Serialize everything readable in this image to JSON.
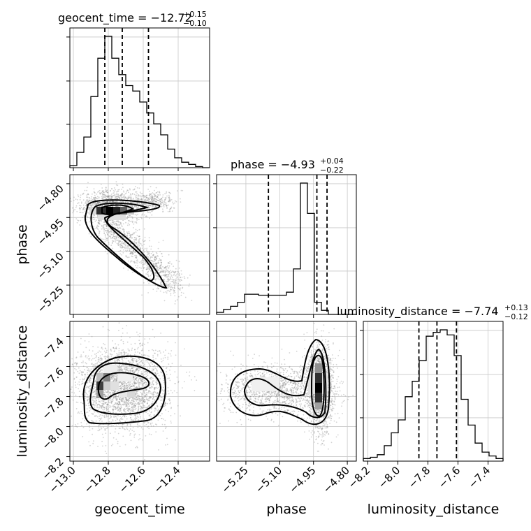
{
  "chart_data": {
    "type": "corner",
    "parameters": [
      "geocent_time",
      "phase",
      "luminosity_distance"
    ],
    "axis_labels": {
      "x": [
        "geocent_time",
        "phase",
        "luminosity_distance"
      ],
      "y": [
        "phase",
        "luminosity_distance"
      ]
    },
    "titles": [
      {
        "text": "geocent_time = −12.72",
        "upper": "+0.15",
        "lower": "−0.10"
      },
      {
        "text": "phase = −4.93",
        "upper": "+0.04",
        "lower": "−0.22"
      },
      {
        "text": "luminosity_distance = −7.74",
        "upper": "+0.13",
        "lower": "−0.12"
      }
    ],
    "ranges": {
      "geocent_time": [
        -13.02,
        -12.22
      ],
      "phase": [
        -5.38,
        -4.76
      ],
      "luminosity_distance": [
        -8.23,
        -7.3
      ]
    },
    "ticks": {
      "geocent_time": {
        "values": [
          -13.0,
          -12.8,
          -12.6,
          -12.4
        ],
        "labels": [
          "−13.0",
          "−12.8",
          "−12.6",
          "−12.4"
        ]
      },
      "phase": {
        "values": [
          -5.25,
          -5.1,
          -4.95,
          -4.8
        ],
        "labels": [
          "−5.25",
          "−5.10",
          "−4.95",
          "−4.80"
        ]
      },
      "luminosity_distance": {
        "values": [
          -8.2,
          -8.0,
          -7.8,
          -7.6,
          -7.4
        ],
        "labels": [
          "−8.2",
          "−8.0",
          "−7.8",
          "−7.6",
          "−7.4"
        ]
      }
    },
    "quantiles": {
      "geocent_time": [
        -12.82,
        -12.72,
        -12.57
      ],
      "phase": [
        -5.15,
        -4.935,
        -4.89
      ],
      "luminosity_distance": [
        -7.86,
        -7.74,
        -7.61
      ]
    },
    "histograms": {
      "geocent_time": {
        "x_start": -13.02,
        "bin_width": 0.04,
        "counts": [
          2,
          14,
          28,
          65,
          100,
          120,
          100,
          85,
          75,
          70,
          60,
          50,
          40,
          30,
          17,
          9,
          5,
          3,
          1,
          0
        ]
      },
      "phase": {
        "x_start": -5.38,
        "bin_width": 0.031,
        "counts": [
          2,
          5,
          8,
          12,
          20,
          20,
          19,
          19,
          19,
          19,
          22,
          45,
          130,
          100,
          12,
          4,
          0,
          0,
          0,
          0
        ]
      },
      "luminosity_distance": {
        "x_start": -8.23,
        "bin_width": 0.0465,
        "counts": [
          2,
          3,
          5,
          12,
          22,
          32,
          50,
          62,
          78,
          97,
          100,
          102,
          98,
          82,
          48,
          28,
          14,
          7,
          4,
          2
        ]
      }
    },
    "grid": true,
    "scatter_color": "#808080",
    "contour_color": "#000000"
  }
}
